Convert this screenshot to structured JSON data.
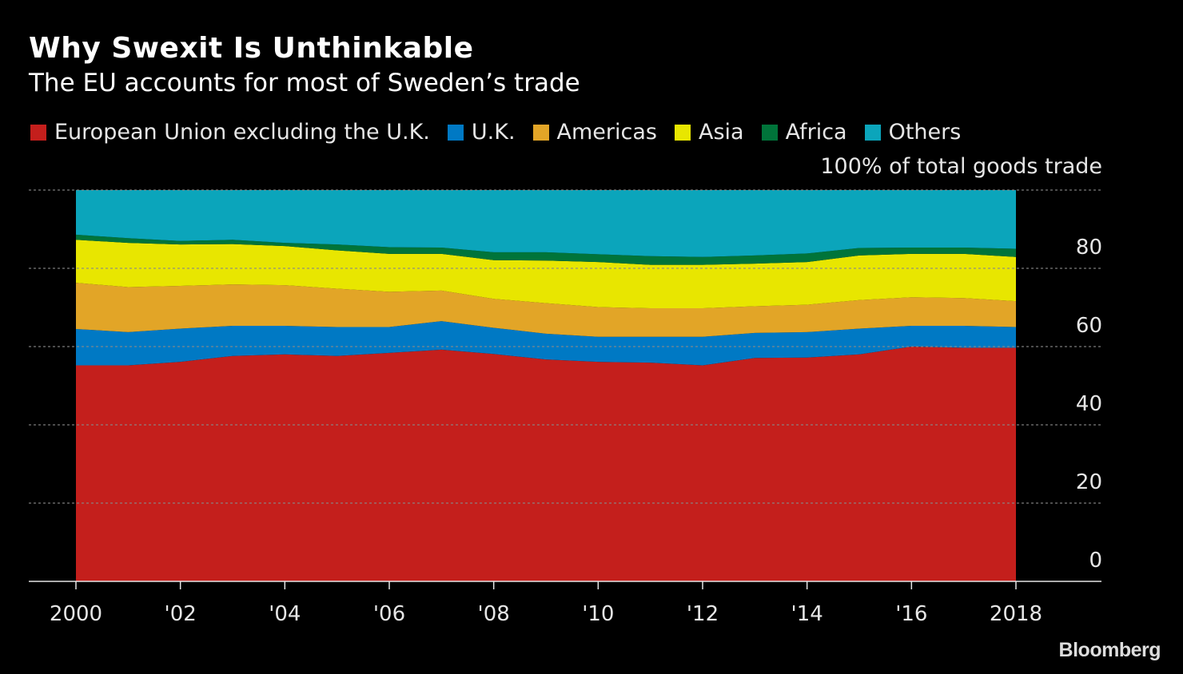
{
  "chart_data": {
    "type": "area",
    "stacked": true,
    "title": "Why Swexit Is Unthinkable",
    "subtitle": "The EU accounts for most of Sweden’s trade",
    "unit_label": "100% of total goods trade",
    "x": [
      2000,
      2001,
      2002,
      2003,
      2004,
      2005,
      2006,
      2007,
      2008,
      2009,
      2010,
      2011,
      2012,
      2013,
      2014,
      2015,
      2016,
      2017,
      2018
    ],
    "x_tick_labels": [
      "2000",
      "'02",
      "'04",
      "'06",
      "'08",
      "'10",
      "'12",
      "'14",
      "'16",
      "2018"
    ],
    "x_tick_values": [
      2000,
      2002,
      2004,
      2006,
      2008,
      2010,
      2012,
      2014,
      2016,
      2018
    ],
    "y_tick_labels": [
      "0",
      "20",
      "40",
      "60",
      "80"
    ],
    "y_tick_values": [
      0,
      20,
      40,
      60,
      80
    ],
    "ylim": [
      0,
      100
    ],
    "xlim": [
      2000,
      2018
    ],
    "grid": true,
    "legend_position": "top",
    "y_axis_side": "right",
    "series": [
      {
        "name": "European Union excluding the U.K.",
        "color": "#c41f1c",
        "values": [
          55.2,
          55.2,
          56.1,
          57.6,
          58.0,
          57.6,
          58.4,
          59.2,
          58.1,
          56.7,
          56.1,
          55.9,
          55.2,
          57.1,
          57.2,
          58.0,
          60.0,
          59.7,
          59.7
        ]
      },
      {
        "name": "U.K.",
        "color": "#0079c4",
        "values": [
          9.3,
          8.5,
          8.5,
          7.7,
          7.3,
          7.4,
          6.6,
          7.3,
          6.7,
          6.6,
          6.4,
          6.6,
          7.3,
          6.4,
          6.5,
          6.6,
          5.3,
          5.6,
          5.3
        ]
      },
      {
        "name": "Americas",
        "color": "#e2a527",
        "values": [
          11.8,
          11.5,
          10.9,
          10.6,
          10.4,
          9.8,
          9.0,
          7.8,
          7.4,
          7.8,
          7.6,
          7.3,
          7.3,
          6.8,
          7.0,
          7.3,
          7.3,
          7.1,
          6.6
        ]
      },
      {
        "name": "Asia",
        "color": "#e8e600",
        "values": [
          11.0,
          11.3,
          10.6,
          10.3,
          10.0,
          9.8,
          9.7,
          9.4,
          9.9,
          10.9,
          11.5,
          11.1,
          11.1,
          10.9,
          10.9,
          11.4,
          11.1,
          11.3,
          11.3
        ]
      },
      {
        "name": "Africa",
        "color": "#00743a",
        "values": [
          1.3,
          1.2,
          0.9,
          1.1,
          0.8,
          1.5,
          1.7,
          1.6,
          2.0,
          2.1,
          2.0,
          2.2,
          2.0,
          2.1,
          2.2,
          1.9,
          1.6,
          1.6,
          2.1
        ]
      },
      {
        "name": "Others",
        "color": "#0ba5bb",
        "values": [
          11.4,
          12.3,
          13.0,
          12.7,
          13.5,
          13.9,
          14.6,
          14.7,
          15.9,
          15.9,
          16.4,
          16.9,
          17.1,
          16.7,
          16.2,
          14.8,
          14.7,
          14.7,
          15.0
        ]
      }
    ]
  },
  "source_logo": "Bloomberg"
}
